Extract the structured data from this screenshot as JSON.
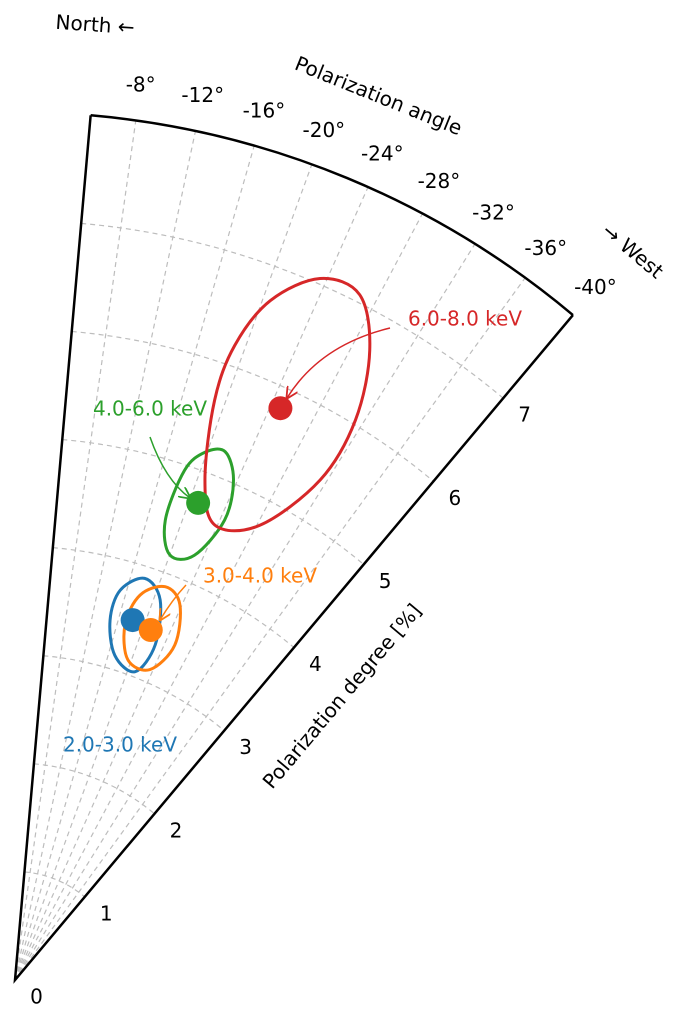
{
  "chart_data": {
    "type": "polar",
    "xlabel": "Polarization angle",
    "ylabel": "Polarization degree [%]",
    "north_label": "North ←",
    "west_label": "→ West",
    "xlim": [
      -5,
      -40
    ],
    "xticks": [
      {
        "value": -8,
        "label": "-8°"
      },
      {
        "value": -12,
        "label": "-12°"
      },
      {
        "value": -16,
        "label": "-16°"
      },
      {
        "value": -20,
        "label": "-20°"
      },
      {
        "value": -24,
        "label": "-24°"
      },
      {
        "value": -28,
        "label": "-28°"
      },
      {
        "value": -32,
        "label": "-32°"
      },
      {
        "value": -36,
        "label": "-36°"
      },
      {
        "value": -40,
        "label": "-40°"
      }
    ],
    "ylim": [
      0,
      8
    ],
    "yticks": [
      0,
      1,
      2,
      3,
      4,
      5,
      6,
      7
    ],
    "grid": true,
    "series": [
      {
        "name": "2.0-3.0 keV",
        "color": "#1f77b4",
        "x": [
          -18.1
        ],
        "y": [
          3.49
        ],
        "contour_x": [
          -17.9,
          -20.9,
          -22.7,
          -21.3,
          -17.1,
          -14.8,
          -15.1
        ],
        "contour_y": [
          3.89,
          3.75,
          3.35,
          3.05,
          3.13,
          3.43,
          3.72
        ]
      },
      {
        "name": "3.0-4.0 keV",
        "color": "#ff7f0e",
        "x": [
          -21.2
        ],
        "y": [
          3.46
        ],
        "contour_x": [
          -20.9,
          -23.7,
          -25.5,
          -23.5,
          -19.4,
          -17.2,
          -18.0
        ],
        "contour_y": [
          3.88,
          3.78,
          3.42,
          3.12,
          3.13,
          3.43,
          3.73
        ]
      },
      {
        "name": "4.0-6.0 keV",
        "color": "#2ca02c",
        "x": [
          -21.0
        ],
        "y": [
          4.71
        ],
        "contour_x": [
          -21.7,
          -23.6,
          -24.5,
          -22.9,
          -20.0,
          -18.1,
          -18.4,
          -19.8
        ],
        "contour_y": [
          5.24,
          5.03,
          4.66,
          4.25,
          4.17,
          4.46,
          4.95,
          5.17
        ]
      },
      {
        "name": "6.0-8.0 keV",
        "color": "#d62728",
        "x": [
          -24.9
        ],
        "y": [
          5.81
        ],
        "contour_x": [
          -20.6,
          -23.5,
          -26.7,
          -29.4,
          -31.3,
          -31.4,
          -28.3,
          -23.7,
          -20.8,
          -19.0,
          -19.1
        ],
        "contour_y": [
          6.69,
          7.05,
          7.07,
          6.66,
          6.04,
          5.4,
          4.76,
          4.58,
          4.93,
          5.65,
          6.19
        ]
      }
    ]
  }
}
